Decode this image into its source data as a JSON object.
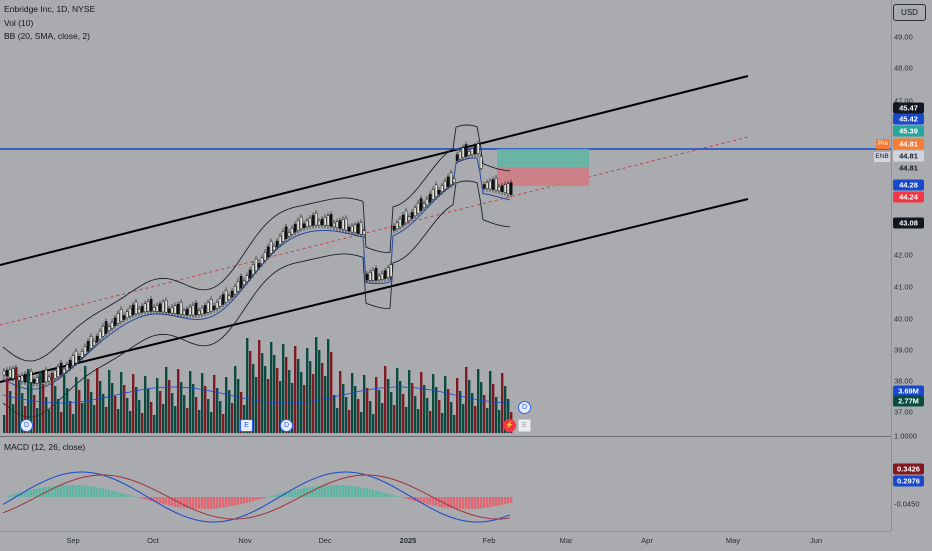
{
  "legend": {
    "symbol": "Enbridge Inc, 1D, NYSE",
    "volume": "Vol (10)",
    "bollinger": "BB (20, SMA, close, 2)",
    "macd": "MACD (12, 26, close)"
  },
  "currency_button": "USD",
  "price_axis_ticks": [
    "49.00",
    "48.00",
    "47.00",
    "42.00",
    "41.00",
    "40.00",
    "39.00",
    "38.00",
    "37.00",
    "1.0000",
    "-0.0450"
  ],
  "price_tags": [
    {
      "text": "45.47",
      "bg": "#131722"
    },
    {
      "text": "45.42",
      "bg": "#1848cc"
    },
    {
      "text": "45.39",
      "bg": "#26a69a"
    },
    {
      "text": "44.81",
      "bg": "#f57c35"
    },
    {
      "text": "44.81",
      "bg": "#d1d4dc"
    },
    {
      "text": "44.81",
      "bg": "#a9abaf"
    },
    {
      "text": "44.28",
      "bg": "#1848cc"
    },
    {
      "text": "44.24",
      "bg": "#f23645"
    },
    {
      "text": "43.08",
      "bg": "#131722"
    },
    {
      "text": "3.69M",
      "bg": "#1848cc"
    },
    {
      "text": "2.77M",
      "bg": "#0b4a3f"
    },
    {
      "text": "0.3426",
      "bg": "#801922"
    },
    {
      "text": "0.2976",
      "bg": "#1848cc"
    }
  ],
  "pre_label": "Pre",
  "enb_label": "ENB",
  "time_axis": [
    "Sep",
    "Oct",
    "Nov",
    "Dec",
    "2025",
    "Feb",
    "Mar",
    "Apr",
    "May",
    "Jun"
  ],
  "event_badges": [
    "D",
    "E",
    "D",
    "D",
    "E",
    "D"
  ],
  "colors": {
    "up": "#0b4a3f",
    "down": "#801922",
    "channel": "#000000",
    "bb": "#1c2230",
    "ma": "#2a4aa0",
    "hline": "#1848cc",
    "trend_dashed": "#c2424b",
    "long_profit": "#5fb5a3",
    "long_loss": "#d27880"
  }
}
